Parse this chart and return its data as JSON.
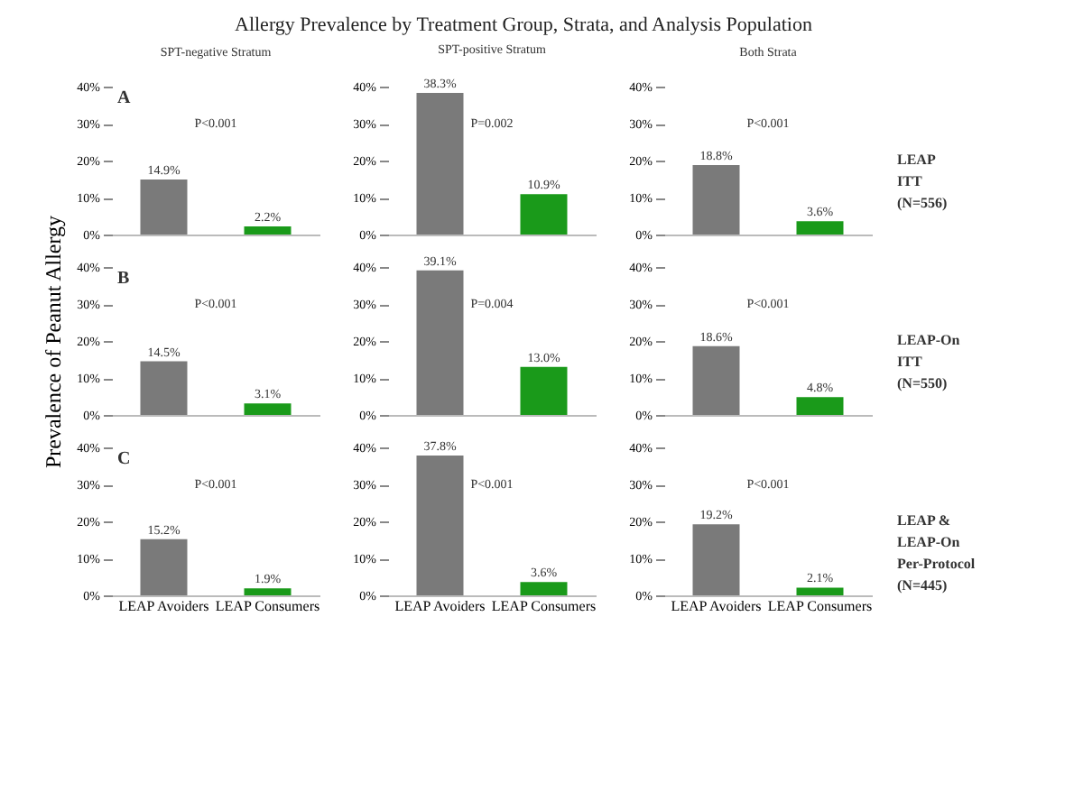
{
  "chart_data": [
    {
      "type": "bar",
      "title": "Allergy Prevalence by Treatment Group, Strata, and Analysis Population",
      "subtitle": "SPT-negative Stratum",
      "categories": [
        null,
        null
      ],
      "values": [
        14.9,
        2.2
      ],
      "colors": [
        "#7a7a7a",
        "#1a9a1a"
      ],
      "value_labels": [
        "14.9%",
        "2.2%"
      ],
      "ylim": [
        0,
        40
      ],
      "yticks": [
        {
          "value": 0,
          "label": "0%"
        },
        {
          "value": 10,
          "label": "10%"
        },
        {
          "value": 20,
          "label": "20%"
        },
        {
          "value": 30,
          "label": "30%"
        },
        {
          "value": 40,
          "label": "40%"
        }
      ],
      "annotations": [
        "A",
        "P<0.001"
      ]
    },
    {
      "type": "bar",
      "subtitle": "SPT-positive Stratum",
      "categories": [
        null,
        null
      ],
      "values": [
        38.3,
        10.9
      ],
      "colors": [
        "#7a7a7a",
        "#1a9a1a"
      ],
      "value_labels": [
        "38.3%",
        "10.9%"
      ],
      "ylim": [
        0,
        40
      ],
      "yticks": [
        {
          "value": 0,
          "label": "0%"
        },
        {
          "value": 10,
          "label": "10%"
        },
        {
          "value": 20,
          "label": "20%"
        },
        {
          "value": 30,
          "label": "30%"
        },
        {
          "value": 40,
          "label": "40%"
        }
      ],
      "annotations": [
        "P=0.002"
      ]
    },
    {
      "type": "bar",
      "subtitle": "Both Strata",
      "categories": [
        null,
        null
      ],
      "values": [
        18.8,
        3.6
      ],
      "colors": [
        "#7a7a7a",
        "#1a9a1a"
      ],
      "value_labels": [
        "18.8%",
        "3.6%"
      ],
      "ylim": [
        0,
        40
      ],
      "yticks": [
        {
          "value": 0,
          "label": "0%"
        },
        {
          "value": 10,
          "label": "10%"
        },
        {
          "value": 20,
          "label": "20%"
        },
        {
          "value": 30,
          "label": "30%"
        },
        {
          "value": 40,
          "label": "40%"
        }
      ],
      "annotations": [
        "P<0.001"
      ],
      "y2label": "LEAP\nITT\n(N=556)"
    },
    {
      "type": "bar",
      "ylabel": "Prevalence of Peanut Allergy",
      "categories": [
        null,
        null
      ],
      "values": [
        14.5,
        3.1
      ],
      "colors": [
        "#7a7a7a",
        "#1a9a1a"
      ],
      "value_labels": [
        "14.5%",
        "3.1%"
      ],
      "ylim": [
        0,
        40
      ],
      "yticks": [
        {
          "value": 0,
          "label": "0%"
        },
        {
          "value": 10,
          "label": "10%"
        },
        {
          "value": 20,
          "label": "20%"
        },
        {
          "value": 30,
          "label": "30%"
        },
        {
          "value": 40,
          "label": "40%"
        }
      ],
      "annotations": [
        "B",
        "P<0.001"
      ]
    },
    {
      "type": "bar",
      "categories": [
        null,
        null
      ],
      "values": [
        39.1,
        13.0
      ],
      "colors": [
        "#7a7a7a",
        "#1a9a1a"
      ],
      "value_labels": [
        "39.1%",
        "13.0%"
      ],
      "ylim": [
        0,
        40
      ],
      "yticks": [
        {
          "value": 0,
          "label": "0%"
        },
        {
          "value": 10,
          "label": "10%"
        },
        {
          "value": 20,
          "label": "20%"
        },
        {
          "value": 30,
          "label": "30%"
        },
        {
          "value": 40,
          "label": "40%"
        }
      ],
      "annotations": [
        "P=0.004"
      ]
    },
    {
      "type": "bar",
      "categories": [
        null,
        null
      ],
      "values": [
        18.6,
        4.8
      ],
      "colors": [
        "#7a7a7a",
        "#1a9a1a"
      ],
      "value_labels": [
        "18.6%",
        "4.8%"
      ],
      "ylim": [
        0,
        40
      ],
      "yticks": [
        {
          "value": 0,
          "label": "0%"
        },
        {
          "value": 10,
          "label": "10%"
        },
        {
          "value": 20,
          "label": "20%"
        },
        {
          "value": 30,
          "label": "30%"
        },
        {
          "value": 40,
          "label": "40%"
        }
      ],
      "annotations": [
        "P<0.001"
      ],
      "y2label": "LEAP-On\nITT\n(N=550)"
    },
    {
      "type": "bar",
      "categories": [
        "LEAP Avoiders",
        "LEAP Consumers"
      ],
      "values": [
        15.2,
        1.9
      ],
      "colors": [
        "#7a7a7a",
        "#1a9a1a"
      ],
      "value_labels": [
        "15.2%",
        "1.9%"
      ],
      "ylim": [
        0,
        40
      ],
      "yticks": [
        {
          "value": 0,
          "label": "0%"
        },
        {
          "value": 10,
          "label": "10%"
        },
        {
          "value": 20,
          "label": "20%"
        },
        {
          "value": 30,
          "label": "30%"
        },
        {
          "value": 40,
          "label": "40%"
        }
      ],
      "annotations": [
        "C",
        "P<0.001"
      ]
    },
    {
      "type": "bar",
      "categories": [
        "LEAP Avoiders",
        "LEAP Consumers"
      ],
      "values": [
        37.8,
        3.6
      ],
      "colors": [
        "#7a7a7a",
        "#1a9a1a"
      ],
      "value_labels": [
        "37.8%",
        "3.6%"
      ],
      "ylim": [
        0,
        40
      ],
      "yticks": [
        {
          "value": 0,
          "label": "0%"
        },
        {
          "value": 10,
          "label": "10%"
        },
        {
          "value": 20,
          "label": "20%"
        },
        {
          "value": 30,
          "label": "30%"
        },
        {
          "value": 40,
          "label": "40%"
        }
      ],
      "annotations": [
        "P<0.001"
      ]
    },
    {
      "type": "bar",
      "categories": [
        "LEAP Avoiders",
        "LEAP Consumers"
      ],
      "values": [
        19.2,
        2.1
      ],
      "colors": [
        "#7a7a7a",
        "#1a9a1a"
      ],
      "value_labels": [
        "19.2%",
        "2.1%"
      ],
      "ylim": [
        0,
        40
      ],
      "yticks": [
        {
          "value": 0,
          "label": "0%"
        },
        {
          "value": 10,
          "label": "10%"
        },
        {
          "value": 20,
          "label": "20%"
        },
        {
          "value": 30,
          "label": "30%"
        },
        {
          "value": 40,
          "label": "40%"
        }
      ],
      "annotations": [
        "P<0.001"
      ],
      "y2label": "LEAP &\nLEAP-On\nPer-Protocol\n(N=445)"
    }
  ]
}
